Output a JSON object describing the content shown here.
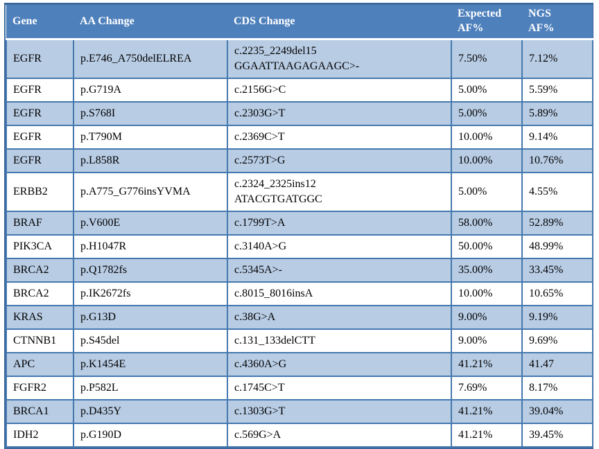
{
  "colors": {
    "header_bg": "#4E80BC",
    "header_text": "#FFFFFF",
    "row_shaded": "#B8CCE4",
    "row_plain": "#FFFFFF",
    "border": "#4478AE",
    "outer_border": "#3A689B",
    "body_text": "#000000"
  },
  "table": {
    "columns": [
      {
        "label": "Gene"
      },
      {
        "label": "AA Change"
      },
      {
        "label": "CDS Change"
      },
      {
        "label": "Expected\nAF%"
      },
      {
        "label": "NGS\nAF%"
      }
    ],
    "rows": [
      {
        "gene": "EGFR",
        "aa_change": "p.E746_A750delELREA",
        "cds_change": "c.2235_2249del15\nGGAATTAAGAGAAGC>-",
        "expected_af": "7.50%",
        "ngs_af": "7.12%"
      },
      {
        "gene": "EGFR",
        "aa_change": "p.G719A",
        "cds_change": "c.2156G>C",
        "expected_af": "5.00%",
        "ngs_af": "5.59%"
      },
      {
        "gene": "EGFR",
        "aa_change": "p.S768I",
        "cds_change": "c.2303G>T",
        "expected_af": "5.00%",
        "ngs_af": "5.89%"
      },
      {
        "gene": "EGFR",
        "aa_change": "p.T790M",
        "cds_change": "c.2369C>T",
        "expected_af": "10.00%",
        "ngs_af": "9.14%"
      },
      {
        "gene": "EGFR",
        "aa_change": "p.L858R",
        "cds_change": "c.2573T>G",
        "expected_af": "10.00%",
        "ngs_af": "10.76%"
      },
      {
        "gene": "ERBB2",
        "aa_change": "p.A775_G776insYVMA",
        "cds_change": "c.2324_2325ins12\nATACGTGATGGC",
        "expected_af": "5.00%",
        "ngs_af": "4.55%"
      },
      {
        "gene": "BRAF",
        "aa_change": "p.V600E",
        "cds_change": "c.1799T>A",
        "expected_af": "58.00%",
        "ngs_af": "52.89%"
      },
      {
        "gene": "PIK3CA",
        "aa_change": "p.H1047R",
        "cds_change": "c.3140A>G",
        "expected_af": "50.00%",
        "ngs_af": "48.99%"
      },
      {
        "gene": "BRCA2",
        "aa_change": "p.Q1782fs",
        "cds_change": "c.5345A>-",
        "expected_af": "35.00%",
        "ngs_af": "33.45%"
      },
      {
        "gene": "BRCA2",
        "aa_change": "p.IK2672fs",
        "cds_change": "c.8015_8016insA",
        "expected_af": "10.00%",
        "ngs_af": "10.65%"
      },
      {
        "gene": "KRAS",
        "aa_change": "p.G13D",
        "cds_change": "c.38G>A",
        "expected_af": "9.00%",
        "ngs_af": "9.19%"
      },
      {
        "gene": "CTNNB1",
        "aa_change": "p.S45del",
        "cds_change": "c.131_133delCTT",
        "expected_af": "9.00%",
        "ngs_af": "9.69%"
      },
      {
        "gene": "APC",
        "aa_change": "p.K1454E",
        "cds_change": "c.4360A>G",
        "expected_af": "41.21%",
        "ngs_af": "41.47"
      },
      {
        "gene": "FGFR2",
        "aa_change": "p.P582L",
        "cds_change": "c.1745C>T",
        "expected_af": "7.69%",
        "ngs_af": "8.17%"
      },
      {
        "gene": "BRCA1",
        "aa_change": "p.D435Y",
        "cds_change": "c.1303G>T",
        "expected_af": "41.21%",
        "ngs_af": "39.04%"
      },
      {
        "gene": "IDH2",
        "aa_change": "p.G190D",
        "cds_change": "c.569G>A",
        "expected_af": "41.21%",
        "ngs_af": "39.45%"
      }
    ]
  }
}
